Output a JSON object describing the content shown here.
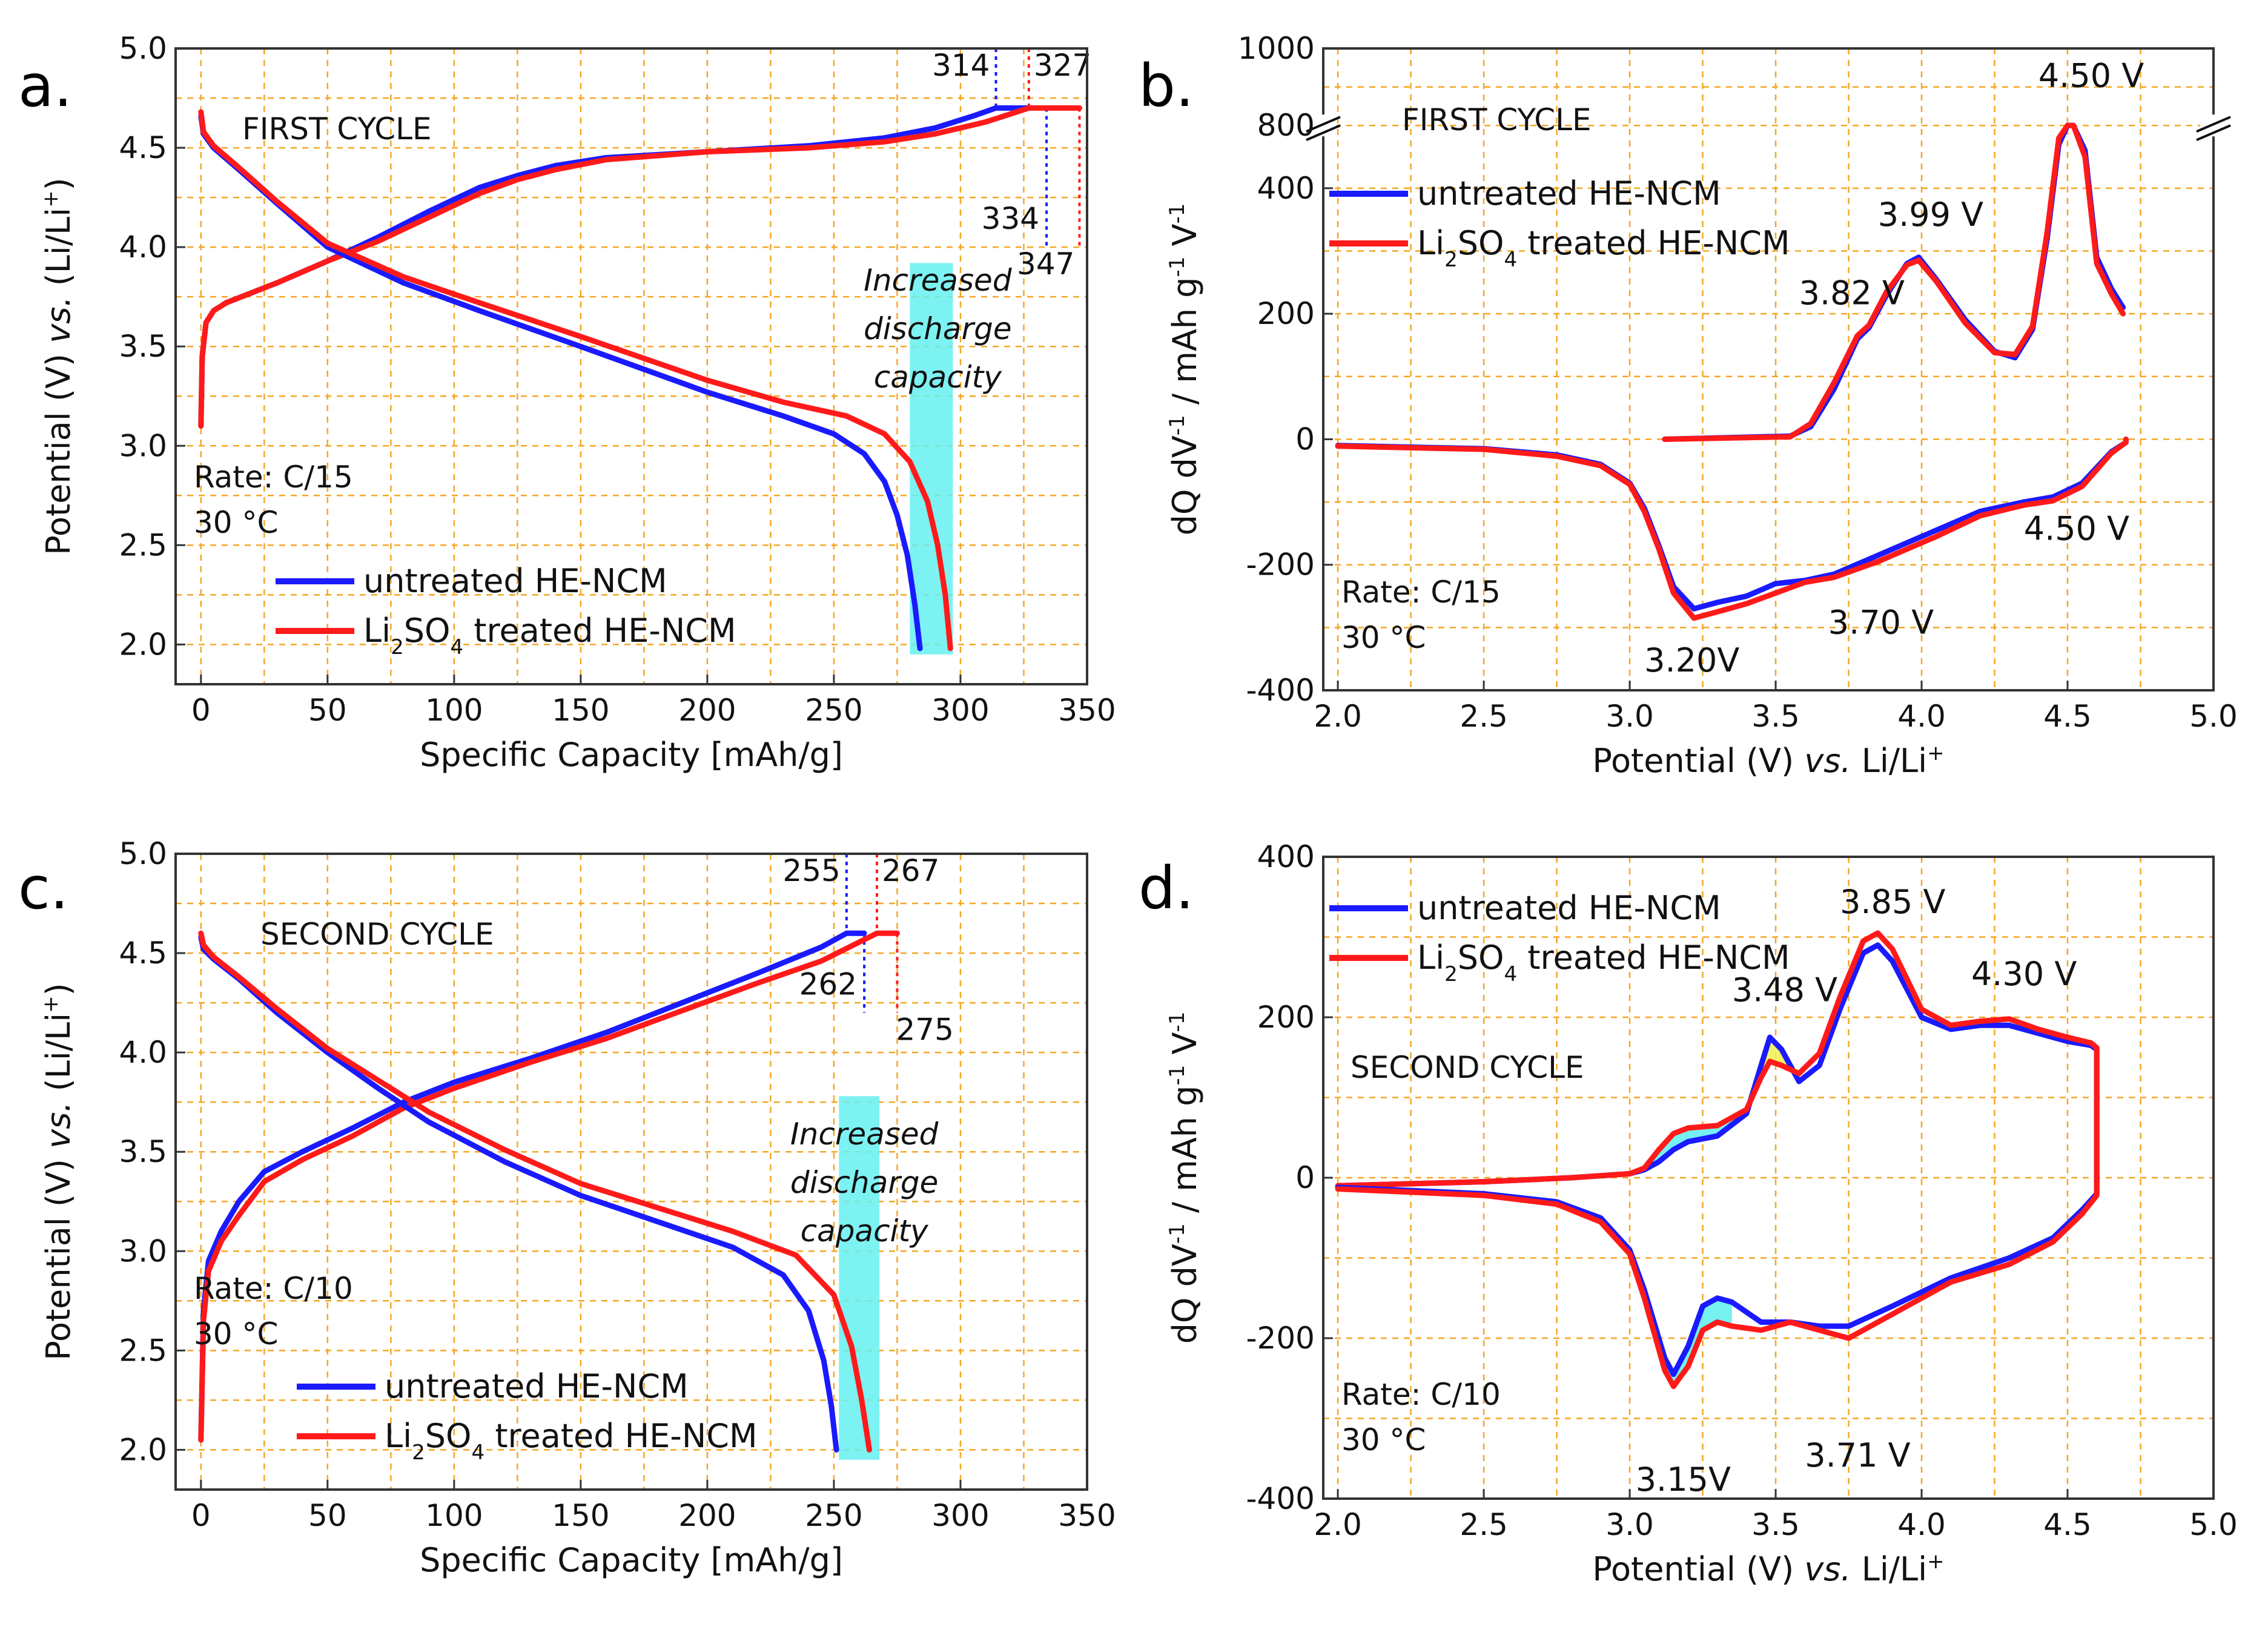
{
  "colors": {
    "untreated": "#1a1aff",
    "treated": "#ff1a1a",
    "grid": "#f5a623",
    "highlight": "#66f0f0",
    "yellow_fill": "#f2f25a"
  },
  "chart_data": [
    {
      "id": "a",
      "type": "line",
      "panel_label": "a.",
      "title": "FIRST CYCLE",
      "xlabel": "Specific Capacity [mAh/g]",
      "ylabel": "Potential (V) vs. (Li/Li+)",
      "xlim": [
        -10,
        350
      ],
      "ylim": [
        1.8,
        5.0
      ],
      "xticks": [
        "0",
        "50",
        "100",
        "150",
        "200",
        "250",
        "300",
        "350"
      ],
      "yticks": [
        "2.0",
        "2.5",
        "3.0",
        "3.5",
        "4.0",
        "4.5",
        "5.0"
      ],
      "conditions": [
        "Rate: C/15",
        "30 °C"
      ],
      "highlight_text": [
        "Increased",
        "discharge",
        "capacity"
      ],
      "highlight_x": [
        280,
        297
      ],
      "highlight_y": [
        1.95,
        3.92
      ],
      "legend": [
        "untreated HE-NCM",
        "Li2SO4 treated HE-NCM"
      ],
      "capacity_markers": [
        {
          "label": "314",
          "x": 314,
          "series": "untreated",
          "type": "charge"
        },
        {
          "label": "327",
          "x": 327,
          "series": "treated",
          "type": "charge"
        },
        {
          "label": "334",
          "x": 334,
          "series": "untreated",
          "type": "discharge"
        },
        {
          "label": "347",
          "x": 347,
          "series": "treated",
          "type": "discharge"
        }
      ],
      "series": [
        {
          "name": "untreated HE-NCM charge",
          "color": "untreated",
          "x": [
            0,
            0.5,
            2,
            5,
            10,
            20,
            30,
            50,
            70,
            90,
            110,
            125,
            140,
            160,
            200,
            240,
            270,
            290,
            305,
            314,
            327
          ],
          "y": [
            3.1,
            3.45,
            3.62,
            3.68,
            3.72,
            3.77,
            3.82,
            3.93,
            4.05,
            4.18,
            4.3,
            4.36,
            4.41,
            4.45,
            4.48,
            4.51,
            4.55,
            4.6,
            4.66,
            4.7,
            4.7
          ]
        },
        {
          "name": "Li2SO4 treated HE-NCM charge",
          "color": "treated",
          "x": [
            0,
            0.5,
            2,
            5,
            10,
            20,
            30,
            50,
            70,
            90,
            110,
            125,
            140,
            160,
            200,
            240,
            270,
            290,
            310,
            327,
            347
          ],
          "y": [
            3.1,
            3.45,
            3.62,
            3.68,
            3.72,
            3.77,
            3.82,
            3.93,
            4.03,
            4.15,
            4.27,
            4.34,
            4.39,
            4.44,
            4.48,
            4.5,
            4.53,
            4.57,
            4.63,
            4.7,
            4.7
          ]
        },
        {
          "name": "untreated HE-NCM discharge",
          "color": "untreated",
          "x": [
            0,
            1,
            5,
            15,
            30,
            50,
            80,
            110,
            150,
            200,
            230,
            250,
            262,
            270,
            275,
            279,
            282,
            284
          ],
          "y": [
            4.66,
            4.57,
            4.5,
            4.39,
            4.22,
            4.0,
            3.82,
            3.68,
            3.5,
            3.27,
            3.15,
            3.06,
            2.96,
            2.82,
            2.65,
            2.45,
            2.2,
            1.98
          ]
        },
        {
          "name": "Li2SO4 treated HE-NCM discharge",
          "color": "treated",
          "x": [
            0,
            1,
            5,
            15,
            30,
            50,
            80,
            110,
            150,
            200,
            230,
            255,
            270,
            280,
            287,
            291,
            294,
            296
          ],
          "y": [
            4.68,
            4.58,
            4.51,
            4.4,
            4.23,
            4.02,
            3.85,
            3.72,
            3.55,
            3.33,
            3.22,
            3.15,
            3.06,
            2.92,
            2.72,
            2.5,
            2.25,
            1.98
          ]
        }
      ]
    },
    {
      "id": "b",
      "type": "line",
      "panel_label": "b.",
      "title": "FIRST CYCLE",
      "xlabel": "Potential (V) vs. Li/Li+",
      "ylabel": "dQ dV-1 / mAh g-1 V-1",
      "xlim": [
        1.95,
        5.0
      ],
      "ylim": [
        -400,
        500
      ],
      "ylim_broken_upper": [
        800,
        1000
      ],
      "xticks": [
        "2.0",
        "2.5",
        "3.0",
        "3.5",
        "4.0",
        "4.5",
        "5.0"
      ],
      "yticks": [
        "-400",
        "-200",
        "0",
        "200",
        "400"
      ],
      "yticks_upper": [
        "800",
        "1000"
      ],
      "conditions": [
        "Rate: C/15",
        "30 °C"
      ],
      "legend": [
        "untreated HE-NCM",
        "Li2SO4 treated HE-NCM"
      ],
      "peak_labels": [
        "4.50 V",
        "3.99 V",
        "3.82 V",
        "4.50 V",
        "3.70 V",
        "3.20V"
      ],
      "series": [
        {
          "name": "untreated HE-NCM charge",
          "color": "untreated",
          "x": [
            3.12,
            3.55,
            3.62,
            3.7,
            3.78,
            3.82,
            3.88,
            3.95,
            3.99,
            4.05,
            4.15,
            4.25,
            4.32,
            4.38,
            4.43,
            4.47,
            4.5,
            4.52,
            4.56,
            4.6,
            4.65,
            4.69
          ],
          "y": [
            0,
            5,
            20,
            80,
            160,
            178,
            230,
            280,
            290,
            255,
            190,
            140,
            130,
            175,
            320,
            470,
            500,
            500,
            460,
            290,
            240,
            210
          ]
        },
        {
          "name": "Li2SO4 treated HE-NCM charge",
          "color": "treated",
          "x": [
            3.12,
            3.55,
            3.62,
            3.7,
            3.78,
            3.82,
            3.88,
            3.95,
            3.99,
            4.05,
            4.15,
            4.25,
            4.32,
            4.38,
            4.43,
            4.47,
            4.5,
            4.52,
            4.56,
            4.6,
            4.65,
            4.69
          ],
          "y": [
            0,
            4,
            25,
            90,
            165,
            182,
            235,
            278,
            285,
            252,
            185,
            138,
            135,
            180,
            330,
            480,
            500,
            500,
            450,
            280,
            232,
            200
          ]
        },
        {
          "name": "untreated HE-NCM discharge",
          "color": "untreated",
          "x": [
            4.7,
            4.7,
            4.65,
            4.55,
            4.45,
            4.35,
            4.2,
            4.05,
            3.85,
            3.7,
            3.6,
            3.5,
            3.4,
            3.3,
            3.22,
            3.15,
            3.1,
            3.05,
            3.0,
            2.9,
            2.75,
            2.5,
            2.0
          ],
          "y": [
            0,
            -5,
            -20,
            -70,
            -92,
            -100,
            -115,
            -145,
            -185,
            -215,
            -225,
            -230,
            -250,
            -260,
            -270,
            -235,
            -170,
            -110,
            -70,
            -40,
            -25,
            -15,
            -10
          ]
        },
        {
          "name": "Li2SO4 treated HE-NCM discharge",
          "color": "treated",
          "x": [
            4.7,
            4.7,
            4.65,
            4.55,
            4.45,
            4.35,
            4.2,
            4.05,
            3.85,
            3.7,
            3.6,
            3.5,
            3.4,
            3.3,
            3.22,
            3.15,
            3.1,
            3.05,
            3.0,
            2.9,
            2.75,
            2.5,
            2.0
          ],
          "y": [
            0,
            -5,
            -22,
            -75,
            -98,
            -105,
            -122,
            -155,
            -195,
            -220,
            -228,
            -245,
            -262,
            -275,
            -285,
            -245,
            -175,
            -115,
            -72,
            -42,
            -27,
            -16,
            -11
          ]
        }
      ]
    },
    {
      "id": "c",
      "type": "line",
      "panel_label": "c.",
      "title": "SECOND CYCLE",
      "xlabel": "Specific Capacity [mAh/g]",
      "ylabel": "Potential (V) vs. (Li/Li+)",
      "xlim": [
        -10,
        350
      ],
      "ylim": [
        1.8,
        5.0
      ],
      "xticks": [
        "0",
        "50",
        "100",
        "150",
        "200",
        "250",
        "300",
        "350"
      ],
      "yticks": [
        "2.0",
        "2.5",
        "3.0",
        "3.5",
        "4.0",
        "4.5",
        "5.0"
      ],
      "conditions": [
        "Rate: C/10",
        "30 °C"
      ],
      "highlight_text": [
        "Increased",
        "discharge",
        "capacity"
      ],
      "highlight_x": [
        252,
        268
      ],
      "highlight_y": [
        1.95,
        3.78
      ],
      "legend": [
        "untreated HE-NCM",
        "Li2SO4 treated HE-NCM"
      ],
      "capacity_markers": [
        {
          "label": "255",
          "x": 255,
          "series": "untreated",
          "type": "charge"
        },
        {
          "label": "267",
          "x": 267,
          "series": "treated",
          "type": "charge"
        },
        {
          "label": "262",
          "x": 262,
          "series": "untreated",
          "type": "discharge"
        },
        {
          "label": "275",
          "x": 275,
          "series": "treated",
          "type": "discharge"
        }
      ],
      "series": [
        {
          "name": "untreated HE-NCM charge",
          "color": "untreated",
          "x": [
            0,
            1,
            3,
            8,
            15,
            25,
            40,
            60,
            80,
            100,
            130,
            160,
            190,
            220,
            245,
            255,
            262
          ],
          "y": [
            2.05,
            2.7,
            2.95,
            3.1,
            3.25,
            3.4,
            3.5,
            3.62,
            3.75,
            3.85,
            3.97,
            4.1,
            4.25,
            4.4,
            4.53,
            4.6,
            4.6
          ]
        },
        {
          "name": "Li2SO4 treated HE-NCM charge",
          "color": "treated",
          "x": [
            0,
            1,
            3,
            8,
            15,
            25,
            40,
            60,
            80,
            100,
            130,
            160,
            190,
            220,
            245,
            267,
            275
          ],
          "y": [
            2.05,
            2.65,
            2.9,
            3.05,
            3.18,
            3.35,
            3.46,
            3.58,
            3.72,
            3.82,
            3.95,
            4.07,
            4.21,
            4.35,
            4.46,
            4.6,
            4.6
          ]
        },
        {
          "name": "untreated HE-NCM discharge",
          "color": "untreated",
          "x": [
            0,
            1,
            5,
            15,
            30,
            50,
            70,
            90,
            120,
            150,
            180,
            210,
            230,
            240,
            246,
            249,
            251
          ],
          "y": [
            4.58,
            4.52,
            4.47,
            4.37,
            4.2,
            4.0,
            3.82,
            3.65,
            3.45,
            3.28,
            3.15,
            3.02,
            2.88,
            2.7,
            2.45,
            2.22,
            2.0
          ]
        },
        {
          "name": "Li2SO4 treated HE-NCM discharge",
          "color": "treated",
          "x": [
            0,
            1,
            5,
            15,
            30,
            50,
            70,
            90,
            120,
            150,
            180,
            210,
            235,
            250,
            257,
            261,
            264
          ],
          "y": [
            4.6,
            4.54,
            4.48,
            4.38,
            4.22,
            4.02,
            3.86,
            3.7,
            3.51,
            3.34,
            3.22,
            3.1,
            2.98,
            2.78,
            2.52,
            2.25,
            2.0
          ]
        }
      ]
    },
    {
      "id": "d",
      "type": "line",
      "panel_label": "d.",
      "title": "SECOND CYCLE",
      "xlabel": "Potential (V) vs. Li/Li+",
      "ylabel": "dQ dV-1 / mAh g-1 V-1",
      "xlim": [
        1.95,
        5.0
      ],
      "ylim": [
        -400,
        400
      ],
      "xticks": [
        "2.0",
        "2.5",
        "3.0",
        "3.5",
        "4.0",
        "4.5",
        "5.0"
      ],
      "yticks": [
        "-400",
        "-200",
        "0",
        "200",
        "400"
      ],
      "conditions": [
        "Rate: C/10",
        "30 °C"
      ],
      "legend": [
        "untreated HE-NCM",
        "Li2SO4 treated HE-NCM"
      ],
      "peak_labels": [
        "3.85 V",
        "4.30 V",
        "3.48 V",
        "3.71 V",
        "3.15V"
      ],
      "series": [
        {
          "name": "untreated HE-NCM charge",
          "color": "untreated",
          "x": [
            2.0,
            2.5,
            2.8,
            3.0,
            3.05,
            3.1,
            3.15,
            3.2,
            3.3,
            3.4,
            3.45,
            3.48,
            3.52,
            3.58,
            3.65,
            3.72,
            3.8,
            3.85,
            3.9,
            4.0,
            4.1,
            4.2,
            4.3,
            4.4,
            4.5,
            4.58,
            4.6,
            4.6
          ],
          "y": [
            -10,
            -5,
            0,
            5,
            10,
            20,
            35,
            45,
            52,
            80,
            140,
            175,
            160,
            120,
            140,
            210,
            280,
            290,
            270,
            200,
            185,
            190,
            190,
            180,
            170,
            165,
            160,
            0
          ]
        },
        {
          "name": "Li2SO4 treated HE-NCM charge",
          "color": "treated",
          "x": [
            2.0,
            2.5,
            2.8,
            3.0,
            3.05,
            3.1,
            3.15,
            3.2,
            3.3,
            3.4,
            3.45,
            3.48,
            3.52,
            3.58,
            3.65,
            3.72,
            3.8,
            3.85,
            3.9,
            4.0,
            4.1,
            4.2,
            4.3,
            4.4,
            4.5,
            4.58,
            4.6,
            4.6
          ],
          "y": [
            -10,
            -5,
            0,
            5,
            12,
            35,
            55,
            62,
            65,
            85,
            125,
            145,
            140,
            130,
            155,
            225,
            295,
            305,
            285,
            210,
            190,
            195,
            198,
            185,
            175,
            168,
            162,
            0
          ]
        },
        {
          "name": "untreated HE-NCM discharge",
          "color": "untreated",
          "x": [
            4.6,
            4.6,
            4.55,
            4.45,
            4.3,
            4.1,
            3.9,
            3.75,
            3.65,
            3.55,
            3.45,
            3.35,
            3.3,
            3.25,
            3.2,
            3.15,
            3.12,
            3.05,
            3.0,
            2.9,
            2.75,
            2.5,
            2.0
          ],
          "y": [
            0,
            -20,
            -40,
            -75,
            -100,
            -125,
            -160,
            -185,
            -185,
            -180,
            -180,
            -155,
            -150,
            -160,
            -210,
            -245,
            -225,
            -140,
            -90,
            -50,
            -30,
            -20,
            -12
          ]
        },
        {
          "name": "Li2SO4 treated HE-NCM discharge",
          "color": "treated",
          "x": [
            4.6,
            4.6,
            4.55,
            4.45,
            4.3,
            4.1,
            3.9,
            3.75,
            3.65,
            3.55,
            3.45,
            3.35,
            3.3,
            3.25,
            3.2,
            3.15,
            3.12,
            3.05,
            3.0,
            2.9,
            2.75,
            2.5,
            2.0
          ],
          "y": [
            0,
            -22,
            -45,
            -80,
            -108,
            -130,
            -170,
            -200,
            -190,
            -180,
            -190,
            -185,
            -180,
            -190,
            -235,
            -260,
            -240,
            -150,
            -95,
            -55,
            -33,
            -22,
            -14
          ]
        }
      ]
    }
  ]
}
